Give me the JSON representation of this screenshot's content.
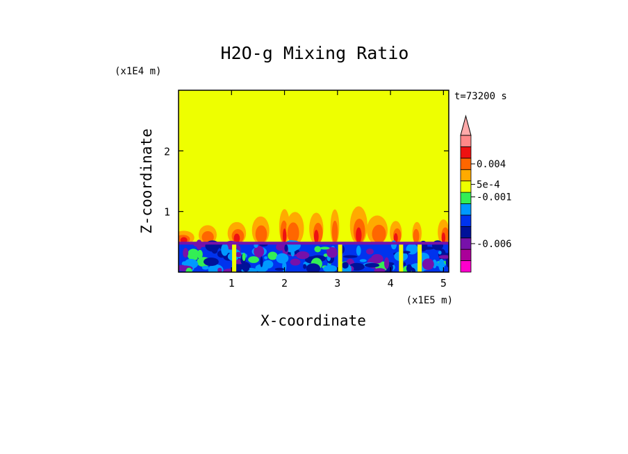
{
  "chart_data": {
    "type": "heatmap",
    "title": "H2O-g Mixing Ratio",
    "xlabel": "X-coordinate",
    "ylabel": "Z-coordinate",
    "x_scale_label": "(x1E5 m)",
    "y_scale_label": "(x1E4 m)",
    "time_label": "t=73200 s",
    "xlim": [
      0,
      5.1
    ],
    "ylim": [
      0,
      3.0
    ],
    "x_ticks": [
      1,
      2,
      3,
      4,
      5
    ],
    "y_ticks": [
      1,
      2
    ],
    "background_value_color": "#eeff00",
    "boundary_layer_top_z": 0.5,
    "colorbar": {
      "levels": [
        {
          "color": "#ff00cc"
        },
        {
          "color": "#aa0099"
        },
        {
          "color": "#7711aa"
        },
        {
          "color": "#001199"
        },
        {
          "color": "#0033ee"
        },
        {
          "color": "#0099ff"
        },
        {
          "color": "#33ee55"
        },
        {
          "color": "#eeff00"
        },
        {
          "color": "#ffaa00"
        },
        {
          "color": "#ff6600"
        },
        {
          "color": "#ee1111"
        },
        {
          "color": "#ff8888"
        }
      ],
      "labels": [
        {
          "text": "0.004",
          "level": 9.5
        },
        {
          "text": "5e-4",
          "level": 7.7
        },
        {
          "text": "-0.001",
          "level": 6.6
        },
        {
          "text": "-0.006",
          "level": 2.5
        }
      ],
      "extend_max_color": "#ffaaaa"
    }
  }
}
